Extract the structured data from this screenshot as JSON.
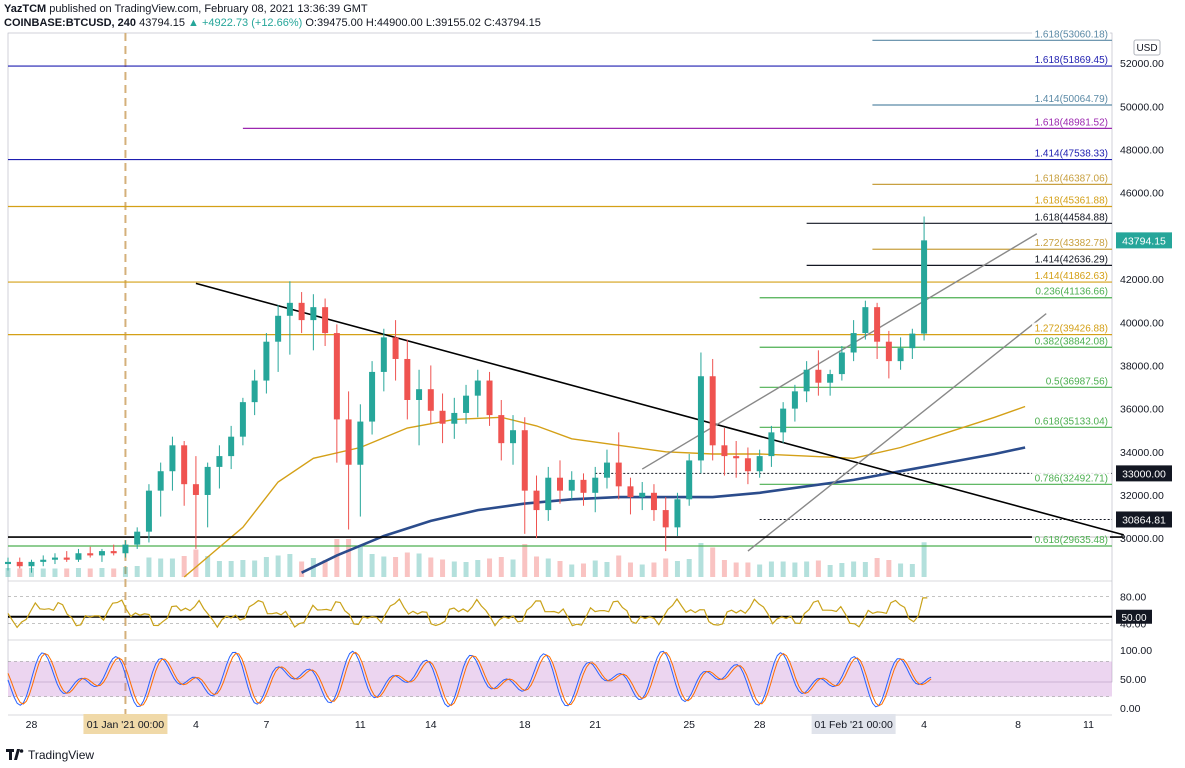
{
  "header": {
    "line1_user": "YazTCM",
    "line1_text": "published on TradingView.com, February 08, 2021 13:36:39 GMT",
    "symbol": "COINBASE:BTCUSD, 240",
    "last_price": "43794.15",
    "change": "▲ +4922.73 (+12.66%)",
    "ohlc": "O:39475.00  H:44900.00  L:39155.02  C:43794.15"
  },
  "currency_label": "USD",
  "chart_data": {
    "type": "candlestick",
    "title": "COINBASE:BTCUSD, 240",
    "price_axis": {
      "range": [
        28200,
        53400
      ],
      "ticks": [
        "52000.00",
        "50000.00",
        "48000.00",
        "46000.00",
        "44000.00",
        "42000.00",
        "40000.00",
        "38000.00",
        "36000.00",
        "34000.00",
        "32000.00",
        "30000.00"
      ],
      "tick_values": [
        52000,
        50000,
        48000,
        46000,
        44000,
        42000,
        40000,
        38000,
        36000,
        34000,
        32000,
        30000
      ]
    },
    "time_axis": {
      "labels": [
        "28",
        "01 Jan '21   00:00",
        "4",
        "7",
        "11",
        "14",
        "18",
        "21",
        "25",
        "28",
        "01 Feb '21   00:00",
        "4",
        "8",
        "11"
      ],
      "positions": [
        0,
        4,
        7,
        10,
        14,
        17,
        21,
        24,
        28,
        31,
        35,
        38,
        42,
        45
      ],
      "range_days": [
        -1,
        46
      ],
      "highlight": [
        "01 Jan '21   00:00",
        "01 Feb '21   00:00"
      ]
    },
    "current_price": "43794.15",
    "horizontal_levels": [
      {
        "label": "1.618(53060.18)",
        "price": 53060.18,
        "color": "#5b8aa6",
        "from_day": 35.8,
        "label_style": "text"
      },
      {
        "label": "1.618(51869.45)",
        "price": 51869.45,
        "color": "#1e1eb0",
        "from_day": -1,
        "label_style": "text"
      },
      {
        "label": "1.414(50064.79)",
        "price": 50064.79,
        "color": "#5b8aa6",
        "from_day": 35.8,
        "label_style": "text"
      },
      {
        "label": "1.618(48981.52)",
        "price": 48981.52,
        "color": "#9c27b0",
        "from_day": 9.0,
        "label_style": "text"
      },
      {
        "label": "1.414(47538.33)",
        "price": 47538.33,
        "color": "#1e1eb0",
        "from_day": -1,
        "label_style": "text"
      },
      {
        "label": "1.618(46387.06)",
        "price": 46387.06,
        "color": "#c8a040",
        "from_day": 35.8,
        "label_style": "text"
      },
      {
        "label": "1.618(45361.88)",
        "price": 45361.88,
        "color": "#d4a017",
        "from_day": -1,
        "label_style": "text"
      },
      {
        "label": "1.618(44584.88)",
        "price": 44584.88,
        "color": "#131722",
        "from_day": 33.0,
        "label_style": "text"
      },
      {
        "label": "1.272(43382.78)",
        "price": 43382.78,
        "color": "#c8a040",
        "from_day": 35.8,
        "label_style": "text"
      },
      {
        "label": "1.414(42636.29)",
        "price": 42636.29,
        "color": "#131722",
        "from_day": 33.0,
        "label_style": "text"
      },
      {
        "label": "1.414(41862.63)",
        "price": 41862.63,
        "color": "#d4a017",
        "from_day": -1,
        "label_style": "text"
      },
      {
        "label": "0.236(41136.66)",
        "price": 41136.66,
        "color": "#4caf50",
        "from_day": 31.0,
        "label_style": "text"
      },
      {
        "label": "1.272(39426.88)",
        "price": 39426.88,
        "color": "#d4a017",
        "from_day": -1,
        "label_style": "text"
      },
      {
        "label": "0.382(38842.08)",
        "price": 38842.08,
        "color": "#4caf50",
        "from_day": 31.0,
        "label_style": "text"
      },
      {
        "label": "0.5(36987.56)",
        "price": 36987.56,
        "color": "#4caf50",
        "from_day": 31.0,
        "label_style": "text"
      },
      {
        "label": "0.618(35133.04)",
        "price": 35133.04,
        "color": "#4caf50",
        "from_day": 31.0,
        "label_style": "text"
      },
      {
        "label": "33000.00",
        "price": 33000.0,
        "color": "#131722",
        "from_day": 24.0,
        "label_style": "dotted"
      },
      {
        "label": "0.786(32492.71)",
        "price": 32492.71,
        "color": "#4caf50",
        "from_day": 31.0,
        "label_style": "text"
      },
      {
        "label": "30864.81",
        "price": 30864.81,
        "color": "#131722",
        "from_day": 31.0,
        "label_style": "dotted"
      },
      {
        "label": "0.618(29635.48)",
        "price": 29635.48,
        "color": "#4caf50",
        "from_day": -1,
        "label_style": "text"
      }
    ],
    "trend_lines": [
      {
        "name": "descending-trendline",
        "points": [
          [
            7.0,
            41800
          ],
          [
            46.5,
            30150
          ]
        ],
        "color": "#000000"
      },
      {
        "name": "channel-upper",
        "points": [
          [
            26.0,
            33200
          ],
          [
            42.8,
            44100
          ]
        ],
        "color": "#888888"
      },
      {
        "name": "channel-lower",
        "points": [
          [
            30.5,
            29400
          ],
          [
            43.2,
            40400
          ]
        ],
        "color": "#888888"
      },
      {
        "name": "support-30000",
        "points": [
          [
            -1,
            30050
          ],
          [
            46.5,
            30050
          ]
        ],
        "color": "#000000"
      }
    ],
    "moving_averages": [
      {
        "name": "MA50",
        "color": "#d4a017",
        "points": [
          [
            6.5,
            28200
          ],
          [
            9.0,
            30500
          ],
          [
            10.5,
            32600
          ],
          [
            12.0,
            33700
          ],
          [
            14.0,
            34200
          ],
          [
            16.0,
            35100
          ],
          [
            18.0,
            35500
          ],
          [
            20.0,
            35600
          ],
          [
            21.5,
            35200
          ],
          [
            23.0,
            34600
          ],
          [
            25.0,
            34300
          ],
          [
            27.0,
            34000
          ],
          [
            29.0,
            33900
          ],
          [
            31.0,
            33900
          ],
          [
            33.0,
            33800
          ],
          [
            35.0,
            33700
          ],
          [
            37.0,
            34200
          ],
          [
            39.0,
            34900
          ],
          [
            41.0,
            35600
          ],
          [
            42.3,
            36100
          ]
        ]
      },
      {
        "name": "MA200",
        "color": "#2b4c8c",
        "points": [
          [
            11.5,
            28400
          ],
          [
            13.0,
            29200
          ],
          [
            15.0,
            30100
          ],
          [
            17.0,
            30800
          ],
          [
            19.0,
            31300
          ],
          [
            21.0,
            31600
          ],
          [
            23.0,
            31800
          ],
          [
            25.0,
            31900
          ],
          [
            27.0,
            31900
          ],
          [
            29.0,
            31900
          ],
          [
            31.0,
            32100
          ],
          [
            33.0,
            32400
          ],
          [
            35.0,
            32700
          ],
          [
            37.0,
            33100
          ],
          [
            39.0,
            33500
          ],
          [
            41.0,
            33900
          ],
          [
            42.3,
            34200
          ]
        ]
      }
    ],
    "candles": [
      {
        "d": -1.0,
        "o": 28800,
        "h": 29100,
        "l": 28500,
        "c": 28900
      },
      {
        "d": -0.5,
        "o": 28900,
        "h": 29100,
        "l": 28600,
        "c": 28700
      },
      {
        "d": 0.0,
        "o": 28700,
        "h": 29000,
        "l": 28400,
        "c": 28900
      },
      {
        "d": 0.5,
        "o": 28900,
        "h": 29200,
        "l": 28700,
        "c": 29000
      },
      {
        "d": 1.0,
        "o": 29000,
        "h": 29300,
        "l": 28800,
        "c": 29100
      },
      {
        "d": 1.5,
        "o": 29100,
        "h": 29400,
        "l": 28900,
        "c": 29000
      },
      {
        "d": 2.0,
        "o": 29000,
        "h": 29500,
        "l": 28900,
        "c": 29300
      },
      {
        "d": 2.5,
        "o": 29300,
        "h": 29600,
        "l": 29100,
        "c": 29200
      },
      {
        "d": 3.0,
        "o": 29200,
        "h": 29500,
        "l": 28900,
        "c": 29400
      },
      {
        "d": 3.5,
        "o": 29400,
        "h": 29700,
        "l": 29200,
        "c": 29300
      },
      {
        "d": 4.0,
        "o": 29300,
        "h": 29900,
        "l": 29100,
        "c": 29700
      },
      {
        "d": 4.5,
        "o": 29700,
        "h": 30500,
        "l": 29500,
        "c": 30300
      },
      {
        "d": 5.0,
        "o": 30300,
        "h": 32500,
        "l": 29800,
        "c": 32200
      },
      {
        "d": 5.5,
        "o": 32200,
        "h": 33500,
        "l": 31000,
        "c": 33100
      },
      {
        "d": 6.0,
        "o": 33100,
        "h": 34700,
        "l": 32200,
        "c": 34300
      },
      {
        "d": 6.5,
        "o": 34300,
        "h": 34500,
        "l": 31500,
        "c": 32500
      },
      {
        "d": 7.0,
        "o": 32500,
        "h": 33800,
        "l": 29500,
        "c": 32000
      },
      {
        "d": 7.5,
        "o": 32000,
        "h": 33500,
        "l": 30500,
        "c": 33300
      },
      {
        "d": 8.0,
        "o": 33300,
        "h": 34300,
        "l": 32300,
        "c": 33800
      },
      {
        "d": 8.5,
        "o": 33800,
        "h": 35200,
        "l": 33200,
        "c": 34700
      },
      {
        "d": 9.0,
        "o": 34700,
        "h": 36500,
        "l": 34300,
        "c": 36300
      },
      {
        "d": 9.5,
        "o": 36300,
        "h": 37800,
        "l": 35700,
        "c": 37300
      },
      {
        "d": 10.0,
        "o": 37300,
        "h": 39500,
        "l": 36700,
        "c": 39100
      },
      {
        "d": 10.5,
        "o": 39100,
        "h": 40800,
        "l": 37700,
        "c": 40300
      },
      {
        "d": 11.0,
        "o": 40300,
        "h": 41900,
        "l": 38500,
        "c": 40900
      },
      {
        "d": 11.5,
        "o": 40900,
        "h": 41400,
        "l": 39500,
        "c": 40100
      },
      {
        "d": 12.0,
        "o": 40100,
        "h": 41300,
        "l": 38700,
        "c": 40700
      },
      {
        "d": 12.5,
        "o": 40700,
        "h": 41100,
        "l": 38900,
        "c": 39500
      },
      {
        "d": 13.0,
        "o": 39500,
        "h": 39900,
        "l": 33500,
        "c": 35500
      },
      {
        "d": 13.5,
        "o": 35500,
        "h": 36800,
        "l": 30400,
        "c": 33400
      },
      {
        "d": 14.0,
        "o": 33400,
        "h": 36200,
        "l": 31000,
        "c": 35400
      },
      {
        "d": 14.5,
        "o": 35400,
        "h": 38200,
        "l": 34800,
        "c": 37700
      },
      {
        "d": 15.0,
        "o": 37700,
        "h": 39700,
        "l": 36800,
        "c": 39300
      },
      {
        "d": 15.5,
        "o": 39300,
        "h": 40100,
        "l": 37300,
        "c": 38300
      },
      {
        "d": 16.0,
        "o": 38300,
        "h": 39200,
        "l": 35500,
        "c": 36400
      },
      {
        "d": 16.5,
        "o": 36400,
        "h": 37800,
        "l": 34300,
        "c": 36900
      },
      {
        "d": 17.0,
        "o": 36900,
        "h": 38000,
        "l": 35300,
        "c": 35900
      },
      {
        "d": 17.5,
        "o": 35900,
        "h": 36700,
        "l": 34400,
        "c": 35300
      },
      {
        "d": 18.0,
        "o": 35300,
        "h": 36500,
        "l": 34600,
        "c": 35800
      },
      {
        "d": 18.5,
        "o": 35800,
        "h": 37100,
        "l": 35300,
        "c": 36600
      },
      {
        "d": 19.0,
        "o": 36600,
        "h": 37800,
        "l": 35600,
        "c": 37300
      },
      {
        "d": 19.5,
        "o": 37300,
        "h": 37700,
        "l": 35200,
        "c": 35700
      },
      {
        "d": 20.0,
        "o": 35700,
        "h": 36400,
        "l": 33600,
        "c": 34400
      },
      {
        "d": 20.5,
        "o": 34400,
        "h": 35700,
        "l": 33400,
        "c": 35000
      },
      {
        "d": 21.0,
        "o": 35000,
        "h": 35600,
        "l": 30200,
        "c": 32200
      },
      {
        "d": 21.5,
        "o": 32200,
        "h": 32900,
        "l": 30000,
        "c": 31300
      },
      {
        "d": 22.0,
        "o": 31300,
        "h": 33300,
        "l": 30800,
        "c": 32800
      },
      {
        "d": 22.5,
        "o": 32800,
        "h": 33600,
        "l": 31600,
        "c": 32200
      },
      {
        "d": 23.0,
        "o": 32200,
        "h": 33100,
        "l": 31800,
        "c": 32700
      },
      {
        "d": 23.5,
        "o": 32700,
        "h": 33000,
        "l": 31500,
        "c": 32100
      },
      {
        "d": 24.0,
        "o": 32100,
        "h": 33300,
        "l": 31200,
        "c": 32800
      },
      {
        "d": 24.5,
        "o": 32800,
        "h": 34100,
        "l": 32300,
        "c": 33500
      },
      {
        "d": 25.0,
        "o": 33500,
        "h": 34900,
        "l": 31800,
        "c": 32400
      },
      {
        "d": 25.5,
        "o": 32400,
        "h": 32800,
        "l": 31100,
        "c": 31900
      },
      {
        "d": 26.0,
        "o": 31900,
        "h": 32600,
        "l": 31300,
        "c": 32100
      },
      {
        "d": 26.5,
        "o": 32100,
        "h": 32500,
        "l": 30800,
        "c": 31300
      },
      {
        "d": 27.0,
        "o": 31300,
        "h": 31900,
        "l": 29400,
        "c": 30500
      },
      {
        "d": 27.5,
        "o": 30500,
        "h": 32100,
        "l": 30100,
        "c": 31800
      },
      {
        "d": 28.0,
        "o": 31800,
        "h": 33900,
        "l": 31500,
        "c": 33600
      },
      {
        "d": 28.5,
        "o": 33600,
        "h": 38600,
        "l": 33000,
        "c": 37500
      },
      {
        "d": 29.0,
        "o": 37500,
        "h": 38300,
        "l": 33600,
        "c": 34300
      },
      {
        "d": 29.5,
        "o": 34300,
        "h": 35100,
        "l": 32900,
        "c": 33800
      },
      {
        "d": 30.0,
        "o": 33800,
        "h": 34500,
        "l": 32800,
        "c": 33700
      },
      {
        "d": 30.5,
        "o": 33700,
        "h": 34200,
        "l": 32500,
        "c": 33100
      },
      {
        "d": 31.0,
        "o": 33100,
        "h": 34100,
        "l": 32800,
        "c": 33800
      },
      {
        "d": 31.5,
        "o": 33800,
        "h": 35200,
        "l": 33300,
        "c": 34900
      },
      {
        "d": 32.0,
        "o": 34900,
        "h": 36300,
        "l": 34400,
        "c": 36000
      },
      {
        "d": 32.5,
        "o": 36000,
        "h": 37100,
        "l": 35400,
        "c": 36800
      },
      {
        "d": 33.0,
        "o": 36800,
        "h": 38200,
        "l": 36300,
        "c": 37800
      },
      {
        "d": 33.5,
        "o": 37800,
        "h": 38700,
        "l": 36600,
        "c": 37200
      },
      {
        "d": 34.0,
        "o": 37200,
        "h": 37800,
        "l": 36600,
        "c": 37600
      },
      {
        "d": 34.5,
        "o": 37600,
        "h": 38900,
        "l": 37300,
        "c": 38600
      },
      {
        "d": 35.0,
        "o": 38600,
        "h": 40100,
        "l": 38200,
        "c": 39500
      },
      {
        "d": 35.5,
        "o": 39500,
        "h": 41000,
        "l": 39200,
        "c": 40700
      },
      {
        "d": 36.0,
        "o": 40700,
        "h": 40900,
        "l": 38300,
        "c": 39100
      },
      {
        "d": 36.5,
        "o": 39100,
        "h": 39600,
        "l": 37400,
        "c": 38200
      },
      {
        "d": 37.0,
        "o": 38200,
        "h": 39300,
        "l": 37800,
        "c": 38800
      },
      {
        "d": 37.5,
        "o": 38800,
        "h": 39700,
        "l": 38300,
        "c": 39475
      },
      {
        "d": 38.0,
        "o": 39475,
        "h": 44900,
        "l": 39155.02,
        "c": 43794.15
      }
    ],
    "rsi": {
      "name": "RSI",
      "ticks": [
        "80.00",
        "40.00"
      ],
      "current": "50.00",
      "range": [
        20,
        100
      ]
    },
    "stoch_rsi": {
      "name": "Stoch RSI",
      "ticks": [
        "100.00",
        "50.00",
        "0.00"
      ],
      "range": [
        -10,
        110
      ],
      "band": [
        20,
        80
      ]
    }
  },
  "footer": {
    "brand": "TradingView"
  }
}
